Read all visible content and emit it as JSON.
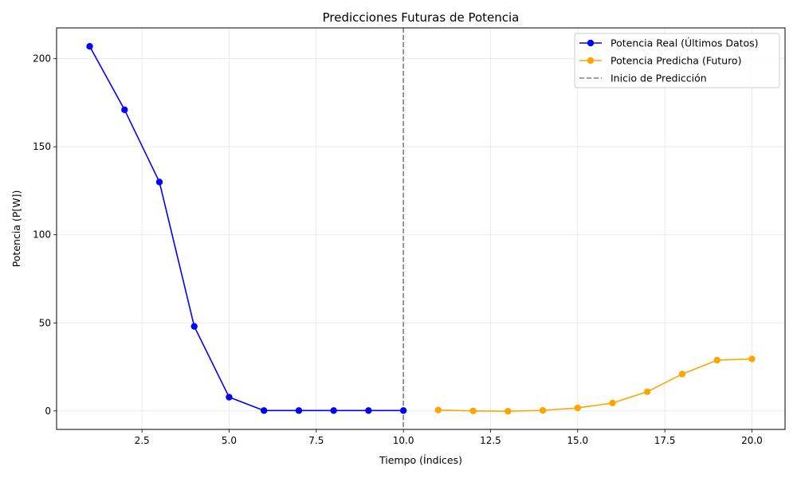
{
  "chart_data": {
    "type": "line",
    "title": "Predicciones Futuras de Potencia",
    "xlabel": "Tiempo (Índices)",
    "ylabel": "Potencia (P[W])",
    "xlim": [
      0.05,
      20.95
    ],
    "ylim": [
      -10.5,
      217.5
    ],
    "xticks": [
      2.5,
      5.0,
      7.5,
      10.0,
      12.5,
      15.0,
      17.5,
      20.0
    ],
    "xtick_labels": [
      "2.5",
      "5.0",
      "7.5",
      "10.0",
      "12.5",
      "15.0",
      "17.5",
      "20.0"
    ],
    "yticks": [
      0,
      50,
      100,
      150,
      200
    ],
    "ytick_labels": [
      "0",
      "50",
      "100",
      "150",
      "200"
    ],
    "grid": true,
    "legend_position": "top-right",
    "series": [
      {
        "name": "Potencia Real (Últimos Datos)",
        "color": "#0000ff",
        "marker": "circle",
        "x": [
          1,
          2,
          3,
          4,
          5,
          6,
          7,
          8,
          9,
          10
        ],
        "y": [
          207,
          171,
          130,
          48,
          7.8,
          0.2,
          0.2,
          0.2,
          0.2,
          0.2
        ]
      },
      {
        "name": "Potencia Predicha (Futuro)",
        "color": "#ffa500",
        "marker": "circle",
        "x": [
          11,
          12,
          13,
          14,
          15,
          16,
          17,
          18,
          19,
          20
        ],
        "y": [
          0.5,
          0.0,
          -0.2,
          0.3,
          1.7,
          4.5,
          10.9,
          20.9,
          28.8,
          29.5
        ]
      }
    ],
    "reference_lines": [
      {
        "name": "Inicio de Predicción",
        "orientation": "vertical",
        "x": 10,
        "style": "dashed",
        "color": "#808080"
      }
    ]
  }
}
